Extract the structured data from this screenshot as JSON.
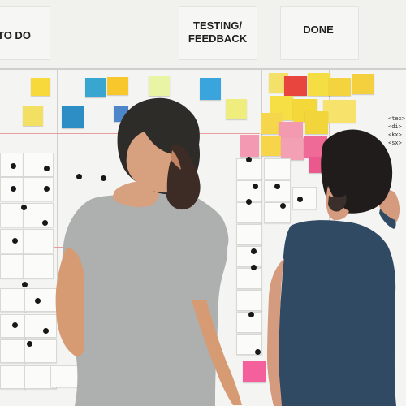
{
  "board": {
    "column_headings": [
      "TO DO",
      "TESTING/",
      "FEEDBACK",
      "DONE"
    ]
  },
  "palette": {
    "sticky_yellow": "#f4d43e",
    "sticky_blue": "#39a6d1",
    "sticky_pink": "#ef6a96",
    "sticky_red": "#e7453d",
    "sticky_light_green": "#e9f4a5",
    "gray_tshirt": "#adb0ae",
    "blue_tshirt": "#2f4a62",
    "magnet": "#181818"
  }
}
